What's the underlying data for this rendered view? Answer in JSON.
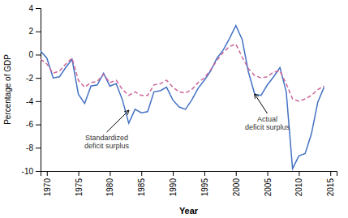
{
  "chart_data": {
    "type": "line",
    "xlabel": "Year",
    "ylabel": "Percentage of GDP",
    "x": [
      1969,
      1970,
      1971,
      1972,
      1973,
      1974,
      1975,
      1976,
      1977,
      1978,
      1979,
      1980,
      1981,
      1982,
      1983,
      1984,
      1985,
      1986,
      1987,
      1988,
      1989,
      1990,
      1991,
      1992,
      1993,
      1994,
      1995,
      1996,
      1997,
      1998,
      1999,
      2000,
      2001,
      2002,
      2003,
      2004,
      2005,
      2006,
      2007,
      2008,
      2009,
      2010,
      2011,
      2012,
      2013,
      2014
    ],
    "series": [
      {
        "color": "#4472c4",
        "line_style": "solid",
        "values": [
          0.3,
          -0.3,
          -2.0,
          -1.9,
          -1.1,
          -0.4,
          -3.4,
          -4.2,
          -2.7,
          -2.6,
          -1.6,
          -2.7,
          -2.5,
          -3.9,
          -5.9,
          -4.7,
          -5.0,
          -4.9,
          -3.2,
          -3.1,
          -2.8,
          -3.9,
          -4.5,
          -4.7,
          -3.9,
          -2.9,
          -2.2,
          -1.4,
          -0.3,
          0.4,
          1.4,
          2.5,
          1.3,
          -1.5,
          -3.4,
          -3.5,
          -2.6,
          -1.9,
          -1.1,
          -3.2,
          -9.8,
          -8.7,
          -8.5,
          -6.8,
          -4.1,
          -2.8
        ]
      },
      {
        "color": "#cc6699",
        "line_style": "dashed",
        "values": [
          -0.4,
          -0.8,
          -1.6,
          -1.4,
          -0.8,
          -0.3,
          -2.2,
          -2.8,
          -2.4,
          -2.3,
          -1.7,
          -2.4,
          -2.2,
          -3.0,
          -3.5,
          -3.2,
          -3.5,
          -3.5,
          -2.6,
          -2.5,
          -2.2,
          -2.8,
          -3.2,
          -3.3,
          -3.0,
          -2.4,
          -2.0,
          -1.3,
          -0.5,
          0.2,
          0.7,
          0.9,
          -0.2,
          -1.2,
          -1.8,
          -2.0,
          -1.9,
          -1.5,
          -1.4,
          -2.5,
          -3.8,
          -4.0,
          -3.8,
          -3.5,
          -3.0,
          -2.7
        ]
      }
    ],
    "xlim": [
      1969,
      2016
    ],
    "ylim": [
      -10,
      4
    ],
    "xticks": [
      1970,
      1975,
      1980,
      1985,
      1990,
      1995,
      2000,
      2005,
      2010,
      2015
    ],
    "yticks": [
      -10,
      -8,
      -6,
      -4,
      -2,
      0,
      2,
      4
    ],
    "grid": false,
    "annotations": [
      {
        "text": "Standardized\ndeficit surplus",
        "xy": [
          1983,
          -4.8
        ],
        "xytext": [
          1979.5,
          -6.8
        ]
      },
      {
        "text": "Actual\ndeficit surplus",
        "xy": [
          2003,
          -3.4
        ],
        "xytext": [
          2005.0,
          -5.2
        ]
      }
    ]
  }
}
